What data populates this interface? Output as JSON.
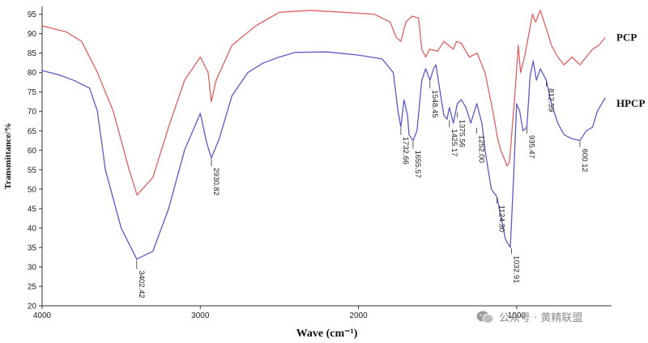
{
  "chart_data": {
    "type": "line",
    "xlabel": "Wave (cm⁻¹)",
    "ylabel": "Transmittance/%",
    "xlim": [
      4000,
      400
    ],
    "ylim": [
      20,
      97
    ],
    "x_ticks": [
      "4000",
      "3000",
      "2000",
      "1000"
    ],
    "y_ticks": [
      "20",
      "25",
      "30",
      "35",
      "40",
      "45",
      "50",
      "55",
      "60",
      "65",
      "70",
      "75",
      "80",
      "85",
      "90",
      "95"
    ],
    "series": [
      {
        "name": "PCP",
        "color": "#e06060",
        "points": [
          [
            4000,
            92
          ],
          [
            3850,
            90.5
          ],
          [
            3750,
            88
          ],
          [
            3650,
            80
          ],
          [
            3550,
            70
          ],
          [
            3450,
            55
          ],
          [
            3400,
            48.5
          ],
          [
            3300,
            53
          ],
          [
            3200,
            66
          ],
          [
            3100,
            78
          ],
          [
            3000,
            84
          ],
          [
            2950,
            80
          ],
          [
            2930,
            72.5
          ],
          [
            2900,
            78
          ],
          [
            2800,
            87
          ],
          [
            2650,
            92
          ],
          [
            2500,
            95.5
          ],
          [
            2300,
            96
          ],
          [
            2100,
            95.5
          ],
          [
            1900,
            95
          ],
          [
            1800,
            93
          ],
          [
            1760,
            89
          ],
          [
            1732,
            88
          ],
          [
            1700,
            93
          ],
          [
            1660,
            94.5
          ],
          [
            1620,
            94
          ],
          [
            1600,
            86
          ],
          [
            1575,
            84
          ],
          [
            1550,
            86
          ],
          [
            1500,
            85.5
          ],
          [
            1460,
            88
          ],
          [
            1430,
            87
          ],
          [
            1400,
            86
          ],
          [
            1380,
            88
          ],
          [
            1350,
            87.5
          ],
          [
            1300,
            84
          ],
          [
            1250,
            85
          ],
          [
            1200,
            80
          ],
          [
            1150,
            70
          ],
          [
            1120,
            63
          ],
          [
            1100,
            60
          ],
          [
            1060,
            56
          ],
          [
            1045,
            57
          ],
          [
            1010,
            75
          ],
          [
            990,
            87
          ],
          [
            975,
            80
          ],
          [
            950,
            84
          ],
          [
            900,
            95
          ],
          [
            880,
            93
          ],
          [
            850,
            96
          ],
          [
            810,
            91
          ],
          [
            780,
            87
          ],
          [
            740,
            84
          ],
          [
            700,
            82
          ],
          [
            650,
            84
          ],
          [
            600,
            82
          ],
          [
            560,
            84
          ],
          [
            520,
            86
          ],
          [
            480,
            87
          ],
          [
            440,
            89
          ]
        ]
      },
      {
        "name": "HPCP",
        "color": "#5a5ac8",
        "points": [
          [
            4000,
            80.5
          ],
          [
            3900,
            79.5
          ],
          [
            3800,
            78
          ],
          [
            3700,
            76
          ],
          [
            3650,
            70
          ],
          [
            3600,
            55
          ],
          [
            3500,
            40
          ],
          [
            3402,
            32
          ],
          [
            3300,
            34
          ],
          [
            3200,
            45
          ],
          [
            3100,
            60
          ],
          [
            3000,
            69.5
          ],
          [
            2960,
            62
          ],
          [
            2930,
            58
          ],
          [
            2880,
            63
          ],
          [
            2800,
            74
          ],
          [
            2700,
            80
          ],
          [
            2600,
            82.5
          ],
          [
            2500,
            84
          ],
          [
            2400,
            85.2
          ],
          [
            2200,
            85.3
          ],
          [
            2000,
            84.5
          ],
          [
            1850,
            83.5
          ],
          [
            1780,
            80
          ],
          [
            1750,
            70
          ],
          [
            1732,
            66
          ],
          [
            1712,
            73
          ],
          [
            1690,
            69
          ],
          [
            1680,
            64
          ],
          [
            1655,
            62.5
          ],
          [
            1630,
            65
          ],
          [
            1600,
            78
          ],
          [
            1575,
            81
          ],
          [
            1548,
            78
          ],
          [
            1525,
            81
          ],
          [
            1510,
            82
          ],
          [
            1480,
            74
          ],
          [
            1460,
            69
          ],
          [
            1440,
            68
          ],
          [
            1425,
            71
          ],
          [
            1400,
            67
          ],
          [
            1375,
            72
          ],
          [
            1350,
            73
          ],
          [
            1320,
            71
          ],
          [
            1290,
            67
          ],
          [
            1252,
            72
          ],
          [
            1220,
            67
          ],
          [
            1200,
            60
          ],
          [
            1160,
            50
          ],
          [
            1124,
            48
          ],
          [
            1110,
            45
          ],
          [
            1070,
            37
          ],
          [
            1040,
            35
          ],
          [
            1020,
            52
          ],
          [
            1000,
            72
          ],
          [
            980,
            70
          ],
          [
            960,
            65
          ],
          [
            935,
            66
          ],
          [
            915,
            79
          ],
          [
            895,
            83
          ],
          [
            875,
            78
          ],
          [
            850,
            81
          ],
          [
            812,
            78
          ],
          [
            780,
            72
          ],
          [
            740,
            67
          ],
          [
            700,
            64
          ],
          [
            650,
            63
          ],
          [
            600,
            62.5
          ],
          [
            560,
            65
          ],
          [
            520,
            66
          ],
          [
            490,
            70
          ],
          [
            440,
            73.5
          ]
        ]
      }
    ],
    "series_labels": [
      {
        "name": "PCP",
        "x": 400,
        "y": 89
      },
      {
        "name": "HPCP",
        "x": 400,
        "y": 72
      }
    ],
    "annotations": [
      {
        "text": "3402.42",
        "x": 3402,
        "y": 32,
        "len": 12
      },
      {
        "text": "2930.82",
        "x": 2930,
        "y": 58,
        "len": 10
      },
      {
        "text": "1732.66",
        "x": 1732,
        "y": 66,
        "len": 10
      },
      {
        "text": "1655.57",
        "x": 1655,
        "y": 62.5,
        "len": 10
      },
      {
        "text": "1548.45",
        "x": 1548,
        "y": 78,
        "len": 10
      },
      {
        "text": "1425.17",
        "x": 1425,
        "y": 68,
        "len": 10
      },
      {
        "text": "1375.56",
        "x": 1375,
        "y": 70,
        "len": 8
      },
      {
        "text": "1252.00",
        "x": 1252,
        "y": 66,
        "len": 8
      },
      {
        "text": "1124.30",
        "x": 1124,
        "y": 48,
        "len": 8
      },
      {
        "text": "1032.91",
        "x": 1032,
        "y": 35,
        "len": 8
      },
      {
        "text": "935.47",
        "x": 935,
        "y": 66,
        "len": 8
      },
      {
        "text": "812.59",
        "x": 812,
        "y": 78,
        "len": 8
      },
      {
        "text": "600.12",
        "x": 600,
        "y": 62.5,
        "len": 8
      }
    ]
  },
  "watermark": {
    "text": "公众号 · 黄精联盟",
    "icon": "wechat-bubbles-icon"
  }
}
